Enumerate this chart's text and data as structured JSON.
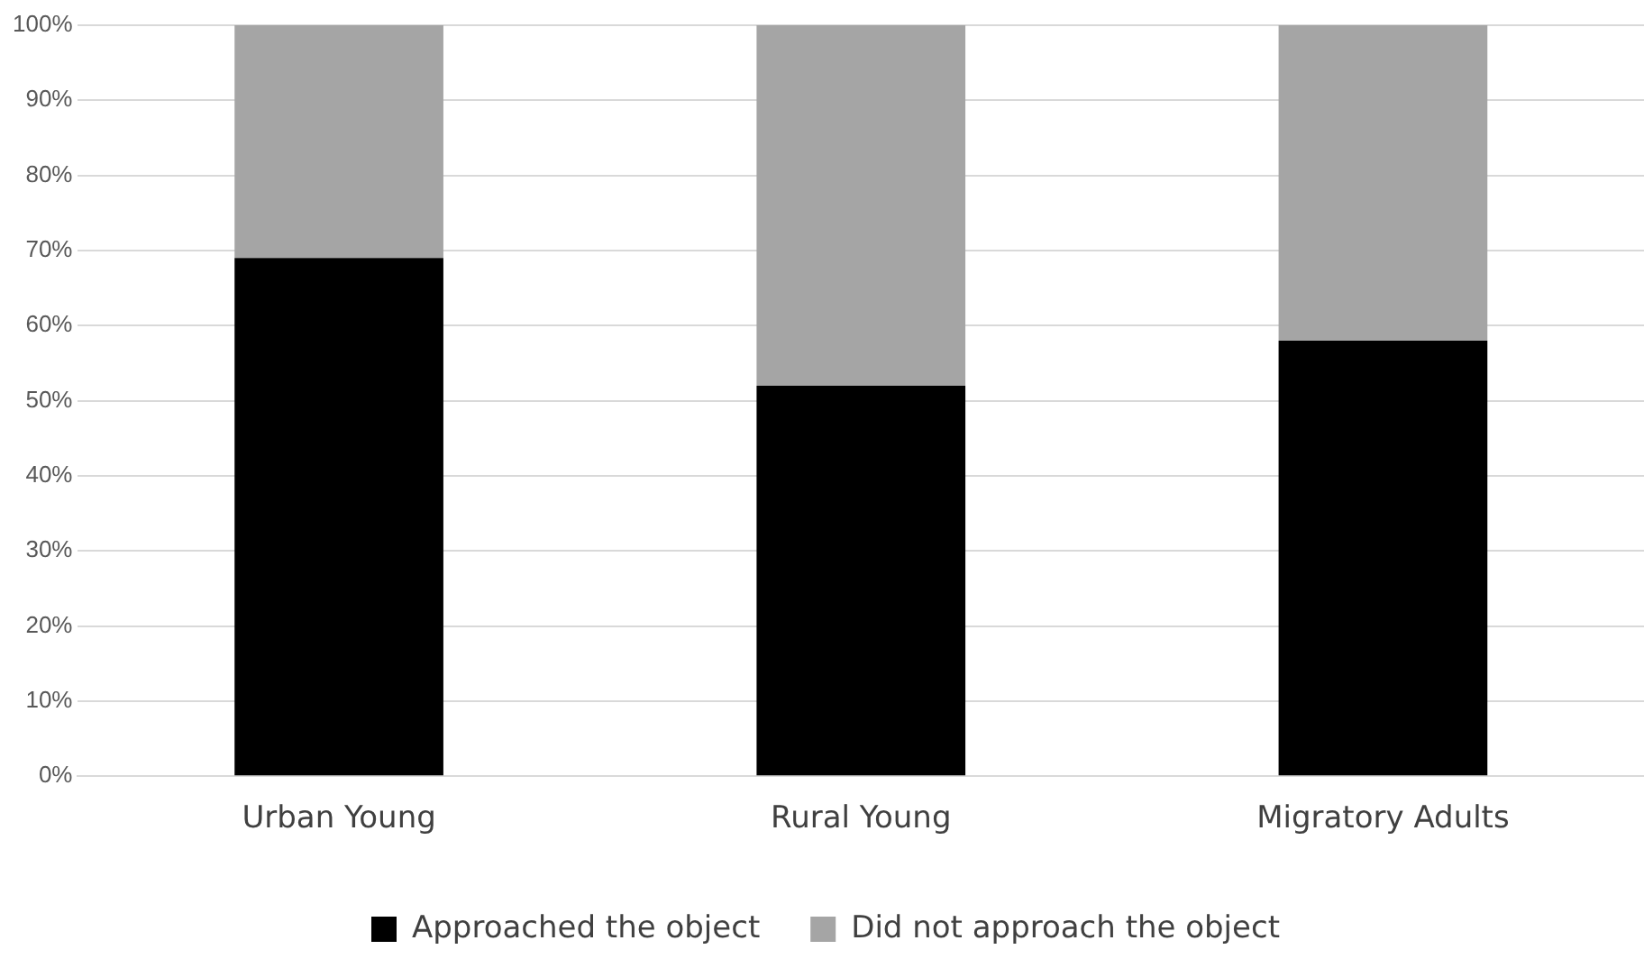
{
  "chart_data": {
    "type": "bar",
    "stacked": true,
    "categories": [
      "Urban Young",
      "Rural Young",
      "Migratory Adults"
    ],
    "series": [
      {
        "name": "Approached the object",
        "color": "#000000",
        "values": [
          69,
          52,
          58
        ]
      },
      {
        "name": "Did not approach the object",
        "color": "#a5a5a5",
        "values": [
          31,
          48,
          42
        ]
      }
    ],
    "ylim": [
      0,
      100
    ],
    "yticks": [
      {
        "value": 0,
        "label": "0%"
      },
      {
        "value": 10,
        "label": "10%"
      },
      {
        "value": 20,
        "label": "20%"
      },
      {
        "value": 30,
        "label": "30%"
      },
      {
        "value": 40,
        "label": "40%"
      },
      {
        "value": 50,
        "label": "50%"
      },
      {
        "value": 60,
        "label": "60%"
      },
      {
        "value": 70,
        "label": "70%"
      },
      {
        "value": 80,
        "label": "80%"
      },
      {
        "value": 90,
        "label": "90%"
      },
      {
        "value": 100,
        "label": "100%"
      }
    ],
    "grid": "y",
    "legend": "bottom"
  }
}
